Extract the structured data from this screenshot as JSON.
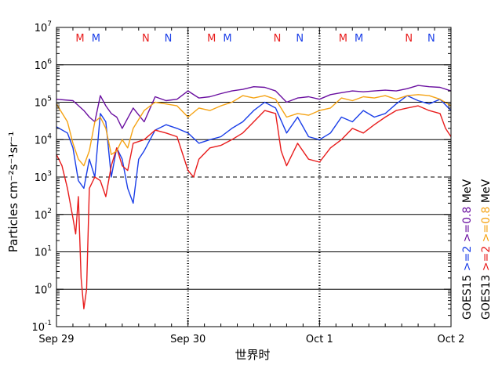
{
  "chart_data": {
    "type": "line",
    "ylabel": "Particles cm⁻²s⁻¹sr⁻¹",
    "xlabel": "世界时",
    "y_scale": "log",
    "ylim": [
      0.1,
      10000000
    ],
    "y_ticks": [
      {
        "value": 0.1,
        "base": "10",
        "exp": "-1"
      },
      {
        "value": 1,
        "base": "10",
        "exp": "0"
      },
      {
        "value": 10,
        "base": "10",
        "exp": "1"
      },
      {
        "value": 100,
        "base": "10",
        "exp": "2"
      },
      {
        "value": 1000,
        "base": "10",
        "exp": "3"
      },
      {
        "value": 10000,
        "base": "10",
        "exp": "4"
      },
      {
        "value": 100000,
        "base": "10",
        "exp": "5"
      },
      {
        "value": 1000000,
        "base": "10",
        "exp": "6"
      },
      {
        "value": 10000000,
        "base": "10",
        "exp": "7"
      }
    ],
    "xlim": [
      "Sep 29 00:00",
      "Oct 2 00:00"
    ],
    "x_ticks": [
      "Sep 29",
      "Sep 30",
      "Oct 1",
      "Oct 2"
    ],
    "grid_solid_at": [
      1,
      10,
      100,
      10000,
      100000,
      1000000
    ],
    "threshold_dashed_at": 1000,
    "day_markers": [
      "Sep 30 00:00",
      "Oct 1 00:00"
    ],
    "markers": [
      {
        "text": "M",
        "day_hour": 4.3,
        "color": "#e81c1c"
      },
      {
        "text": "M",
        "day_hour": 7.2,
        "color": "#1a3ee8"
      },
      {
        "text": "N",
        "day_hour": 16.3,
        "color": "#e81c1c"
      },
      {
        "text": "N",
        "day_hour": 20.4,
        "color": "#1a3ee8"
      }
    ],
    "series": [
      {
        "name": "GOES15 >=0.8 MeV",
        "color": "#6a0fa0",
        "x": [
          0,
          3,
          5,
          6,
          7,
          8,
          9,
          10,
          11,
          12,
          14,
          16,
          18,
          20,
          22,
          24,
          26,
          28,
          30,
          32,
          34,
          36,
          38,
          40,
          42,
          44,
          46,
          48,
          50,
          52,
          54,
          56,
          58,
          60,
          62,
          64,
          66,
          68,
          70,
          72
        ],
        "y": [
          120000,
          110000,
          60000,
          40000,
          30000,
          150000,
          80000,
          50000,
          40000,
          20000,
          70000,
          30000,
          140000,
          110000,
          120000,
          200000,
          130000,
          140000,
          170000,
          200000,
          220000,
          260000,
          250000,
          200000,
          100000,
          130000,
          140000,
          120000,
          160000,
          180000,
          200000,
          190000,
          200000,
          210000,
          200000,
          230000,
          280000,
          260000,
          250000,
          200000
        ]
      },
      {
        "name": "GOES15 >=2 MeV",
        "color": "#1a3ee8",
        "x": [
          0,
          2,
          3,
          4,
          5,
          6,
          7,
          8,
          9,
          10,
          11,
          12,
          13,
          14,
          15,
          16,
          18,
          20,
          22,
          24,
          26,
          28,
          30,
          32,
          34,
          36,
          38,
          40,
          42,
          44,
          46,
          48,
          50,
          52,
          54,
          56,
          58,
          60,
          62,
          64,
          66,
          68,
          70,
          72
        ],
        "y": [
          22000,
          15000,
          6000,
          800,
          500,
          3000,
          1000,
          50000,
          30000,
          1000,
          6000,
          3000,
          500,
          200,
          3000,
          5000,
          18000,
          25000,
          20000,
          15000,
          8000,
          10000,
          12000,
          20000,
          30000,
          60000,
          100000,
          70000,
          15000,
          40000,
          12000,
          10000,
          15000,
          40000,
          30000,
          60000,
          40000,
          50000,
          90000,
          150000,
          110000,
          90000,
          120000,
          60000
        ]
      },
      {
        "name": "GOES13 >=2 MeV",
        "color": "#e81c1c",
        "x": [
          0,
          1,
          2,
          3,
          3.5,
          4,
          4.5,
          5,
          5.5,
          6,
          7,
          8,
          9,
          10,
          11,
          12,
          13,
          14,
          16,
          18,
          20,
          22,
          24,
          25,
          26,
          28,
          30,
          32,
          34,
          36,
          38,
          40,
          41,
          42,
          44,
          46,
          48,
          50,
          52,
          54,
          56,
          58,
          60,
          62,
          64,
          66,
          68,
          70,
          71,
          72
        ],
        "y": [
          4000,
          2000,
          500,
          80,
          30,
          300,
          2,
          0.3,
          1,
          500,
          1000,
          800,
          300,
          2000,
          6000,
          2000,
          1500,
          8000,
          10000,
          18000,
          15000,
          12000,
          1500,
          1000,
          3000,
          6000,
          7000,
          10000,
          15000,
          30000,
          60000,
          50000,
          5000,
          2000,
          8000,
          3000,
          2500,
          6000,
          10000,
          20000,
          15000,
          25000,
          40000,
          60000,
          70000,
          80000,
          60000,
          50000,
          20000,
          12000
        ]
      },
      {
        "name": "GOES13 >=0.8 MeV",
        "color": "#f5a314",
        "x": [
          0,
          2,
          3,
          4,
          5,
          6,
          7,
          8,
          9,
          10,
          11,
          12,
          13,
          14,
          16,
          18,
          20,
          22,
          24,
          26,
          28,
          30,
          32,
          34,
          36,
          38,
          40,
          42,
          44,
          46,
          48,
          50,
          52,
          54,
          56,
          58,
          60,
          62,
          64,
          66,
          68,
          70,
          72
        ],
        "y": [
          90000,
          30000,
          8000,
          3000,
          2000,
          5000,
          30000,
          40000,
          20000,
          4000,
          5000,
          10000,
          6000,
          20000,
          60000,
          100000,
          90000,
          80000,
          40000,
          70000,
          60000,
          80000,
          100000,
          150000,
          130000,
          150000,
          120000,
          40000,
          50000,
          45000,
          60000,
          70000,
          130000,
          110000,
          140000,
          130000,
          150000,
          120000,
          150000,
          160000,
          150000,
          120000,
          80000
        ]
      }
    ],
    "legend": [
      {
        "lines": [
          {
            "text": "GOES15",
            "color": "#000000"
          },
          {
            "text": ">=2",
            "color": "#1a3ee8"
          },
          {
            "text": ">=0.8",
            "color": "#6a0fa0"
          },
          {
            "text": "MeV",
            "color": "#000000"
          }
        ]
      },
      {
        "lines": [
          {
            "text": "GOES13",
            "color": "#000000"
          },
          {
            "text": ">=2",
            "color": "#e81c1c"
          },
          {
            "text": ">=0.8",
            "color": "#f5a314"
          },
          {
            "text": "MeV",
            "color": "#000000"
          }
        ]
      }
    ]
  }
}
